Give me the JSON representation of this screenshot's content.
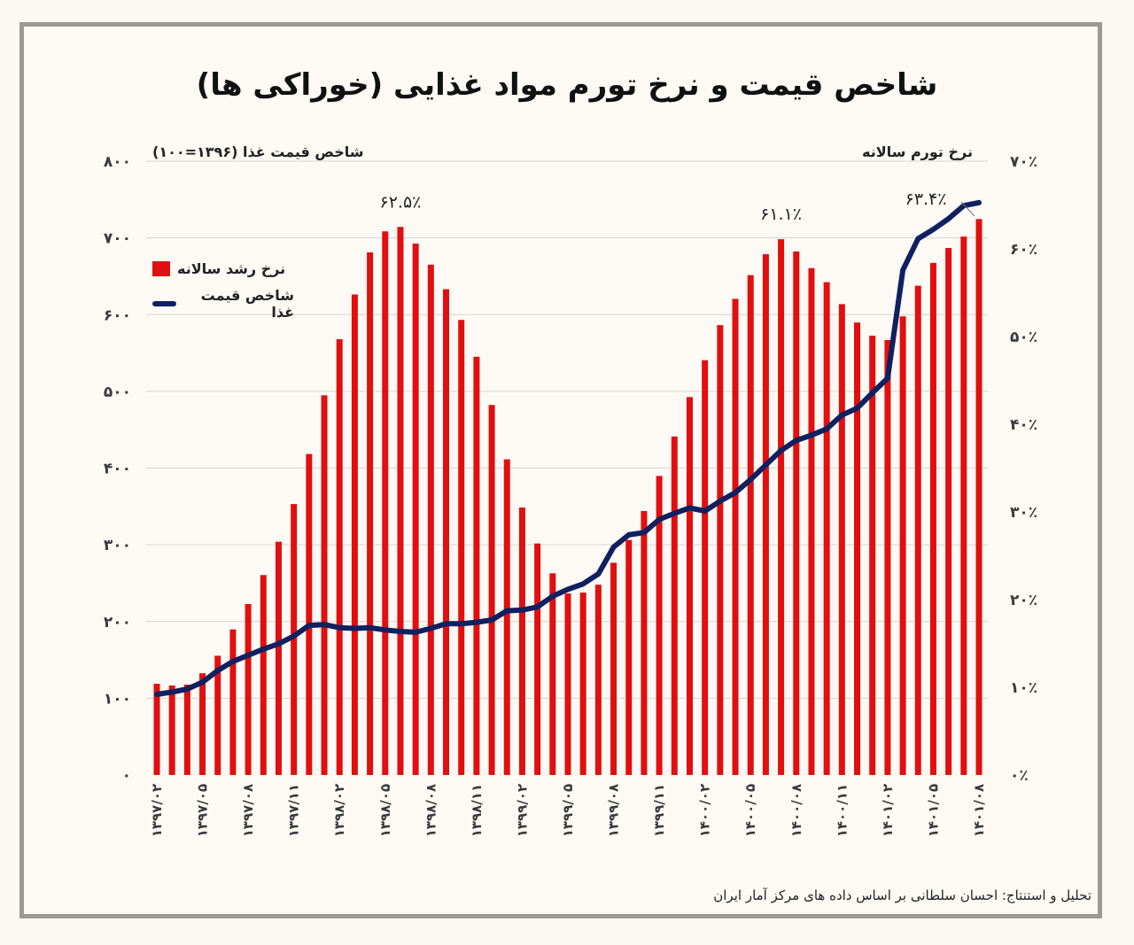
{
  "title": "شاخص قیمت و نرخ تورم مواد غذایی (خوراکی ها)",
  "footer": "تحلیل و استنتاج: احسان سلطانی بر اساس داده های مرکز آمار ایران",
  "colors": {
    "bar": "#e10f0f",
    "line": "#102060",
    "grid": "#d8d4cf",
    "background": "#fdfaf5",
    "frame": "#9b9896"
  },
  "chart_data": {
    "type": "bar",
    "title": "شاخص قیمت و نرخ تورم مواد غذایی (خوراکی ها)",
    "left_axis": {
      "label": "شاخص قیمت غذا (۱۳۹۶=۱۰۰)",
      "range": [
        0,
        800
      ],
      "ticks": [
        "۰",
        "۱۰۰",
        "۲۰۰",
        "۳۰۰",
        "۴۰۰",
        "۵۰۰",
        "۶۰۰",
        "۷۰۰",
        "۸۰۰"
      ],
      "tick_values": [
        0,
        100,
        200,
        300,
        400,
        500,
        600,
        700,
        800
      ]
    },
    "right_axis": {
      "label": "نرخ تورم سالانه",
      "range": [
        0,
        70
      ],
      "ticks": [
        "۰٪",
        "۱۰٪",
        "۲۰٪",
        "۳۰٪",
        "۴۰٪",
        "۵۰٪",
        "۶۰٪",
        "۷۰٪"
      ],
      "tick_values": [
        0,
        10,
        20,
        30,
        40,
        50,
        60,
        70
      ]
    },
    "grid": true,
    "legend_position": "top-left",
    "legend": [
      {
        "name": "نرخ رشد سالانه",
        "type": "bar"
      },
      {
        "name": "شاخص قیمت غذا",
        "type": "line"
      }
    ],
    "x_tick_labels": [
      "۱۳۹۷/۰۲",
      "۱۳۹۷/۰۵",
      "۱۳۹۷/۰۸",
      "۱۳۹۷/۱۱",
      "۱۳۹۸/۰۲",
      "۱۳۹۸/۰۵",
      "۱۳۹۸/۰۸",
      "۱۳۹۸/۱۱",
      "۱۳۹۹/۰۲",
      "۱۳۹۹/۰۵",
      "۱۳۹۹/۰۸",
      "۱۳۹۹/۱۱",
      "۱۴۰۰/۰۲",
      "۱۴۰۰/۰۵",
      "۱۴۰۰/۰۸",
      "۱۴۰۰/۱۱",
      "۱۴۰۱/۰۲",
      "۱۴۰۱/۰۵",
      "۱۴۰۱/۰۸"
    ],
    "x_tick_every": 3,
    "series": [
      {
        "name": "نرخ رشد سالانه",
        "axis": "right",
        "unit": "%",
        "values": [
          10.4,
          10.2,
          10.3,
          11.6,
          13.6,
          16.6,
          19.5,
          22.8,
          26.6,
          30.9,
          36.6,
          43.3,
          49.7,
          54.8,
          59.6,
          62.0,
          62.5,
          60.6,
          58.2,
          55.4,
          51.9,
          47.7,
          42.2,
          36.0,
          30.5,
          26.4,
          23.0,
          20.7,
          20.8,
          21.7,
          24.2,
          26.8,
          30.1,
          34.1,
          38.6,
          43.1,
          47.3,
          51.3,
          54.3,
          57.0,
          59.4,
          61.1,
          59.7,
          57.8,
          56.2,
          53.7,
          51.6,
          50.1,
          49.6,
          52.3,
          55.8,
          58.4,
          60.1,
          61.4,
          63.4
        ]
      },
      {
        "name": "شاخص قیمت غذا",
        "axis": "left",
        "values": [
          105,
          108,
          112,
          121,
          136,
          148,
          156,
          164,
          171,
          181,
          195,
          196,
          192,
          191,
          192,
          189,
          187,
          186,
          191,
          197,
          197,
          199,
          202,
          214,
          215,
          219,
          233,
          242,
          249,
          262,
          297,
          313,
          316,
          333,
          341,
          348,
          344,
          357,
          368,
          385,
          404,
          423,
          436,
          443,
          451,
          469,
          478,
          498,
          517,
          658,
          699,
          711,
          725,
          742,
          746
        ]
      }
    ],
    "annotations": [
      {
        "text": "۶۲.۵٪",
        "bar_index": 16
      },
      {
        "text": "۶۱.۱٪",
        "bar_index": 41
      },
      {
        "text": "۶۳.۴٪",
        "bar_index": 54
      }
    ]
  }
}
